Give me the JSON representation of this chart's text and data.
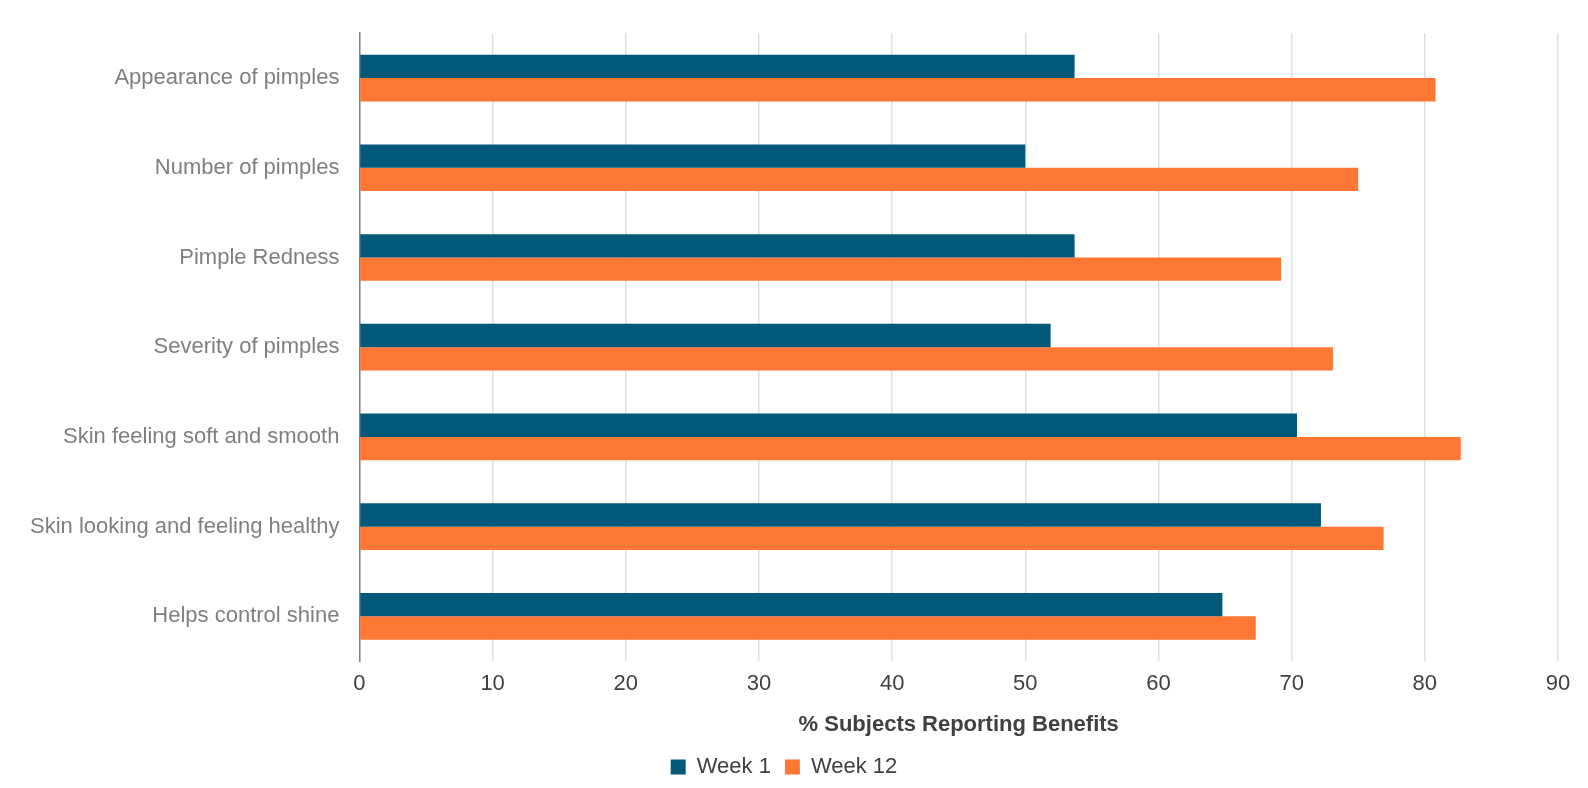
{
  "chart_data": {
    "type": "bar",
    "orientation": "horizontal",
    "xlabel": "% Subjects Reporting Benefits",
    "categories": [
      "Appearance of pimples",
      "Number of pimples",
      "Pimple Redness",
      "Severity of pimples",
      "Skin feeling soft and smooth",
      "Skin looking and feeling healthy",
      "Helps control shine"
    ],
    "series": [
      {
        "name": "Week 1",
        "color": "#03597a",
        "values": [
          53.7,
          50,
          53.7,
          51.9,
          70.4,
          72.2,
          64.8
        ]
      },
      {
        "name": "Week 12",
        "color": "#fe7733",
        "values": [
          80.8,
          75,
          69.2,
          73.1,
          82.7,
          76.9,
          67.3
        ]
      }
    ],
    "xlim": [
      0,
      90
    ],
    "xticks": [
      0,
      10,
      20,
      30,
      40,
      50,
      60,
      70,
      80,
      90
    ],
    "grid": "x",
    "legend": "bottom"
  }
}
